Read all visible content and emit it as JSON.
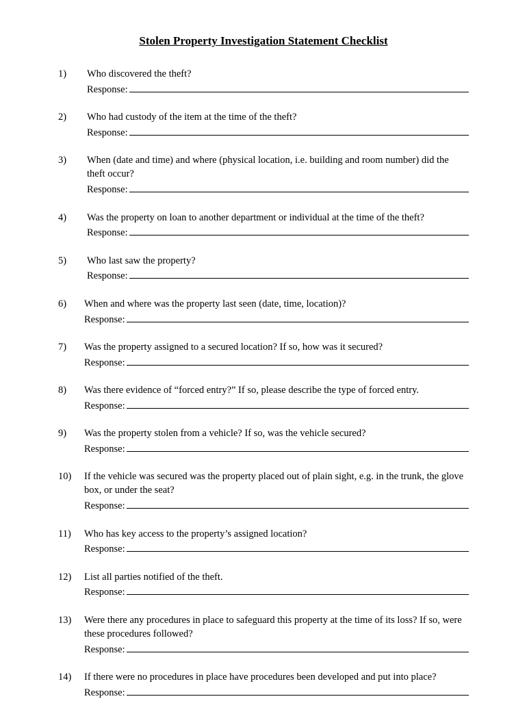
{
  "title": "Stolen Property Investigation Statement Checklist",
  "response_label": "Response:",
  "questions": [
    {
      "number": "1)",
      "text": "Who discovered the theft?",
      "indent_class": "indent-small"
    },
    {
      "number": "2)",
      "text": "Who had custody of the item at the time of the theft?",
      "indent_class": "indent-small"
    },
    {
      "number": "3)",
      "text": "When (date and time) and where (physical location, i.e. building and room number) did the theft occur?",
      "indent_class": "indent-small"
    },
    {
      "number": "4)",
      "text": "Was the property on loan to another department or individual at the time of the theft?",
      "indent_class": "indent-small"
    },
    {
      "number": "5)",
      "text": "Who last saw the property?",
      "indent_class": "indent-small"
    },
    {
      "number": "6)",
      "text": "When and where was the property last seen (date, time, location)?",
      "indent_class": "indent-none"
    },
    {
      "number": "7)",
      "text": "Was the property assigned to a secured location?  If so, how was it secured?",
      "indent_class": "indent-none"
    },
    {
      "number": "8)",
      "text": "Was there evidence of “forced entry?”  If so, please describe the type of forced entry.",
      "indent_class": "indent-none"
    },
    {
      "number": "9)",
      "text": "Was the property stolen from a vehicle?  If so, was the vehicle secured?",
      "indent_class": "indent-none"
    },
    {
      "number": "10)",
      "text": "If the vehicle was secured was the property placed out of plain sight, e.g. in the trunk, the glove box, or under the seat?",
      "indent_class": "indent-none"
    },
    {
      "number": "11)",
      "text": "Who has key access to the property’s assigned location?",
      "indent_class": "indent-none"
    },
    {
      "number": "12)",
      "text": "List all parties notified of the theft.",
      "indent_class": "indent-none"
    },
    {
      "number": "13)",
      "text": "Were there any procedures in place to safeguard this property at the time of its loss?  If so, were these procedures followed?",
      "indent_class": "indent-none"
    },
    {
      "number": "14)",
      "text": "If there were no procedures in place have procedures been developed and put into place?",
      "indent_class": "indent-none"
    }
  ]
}
